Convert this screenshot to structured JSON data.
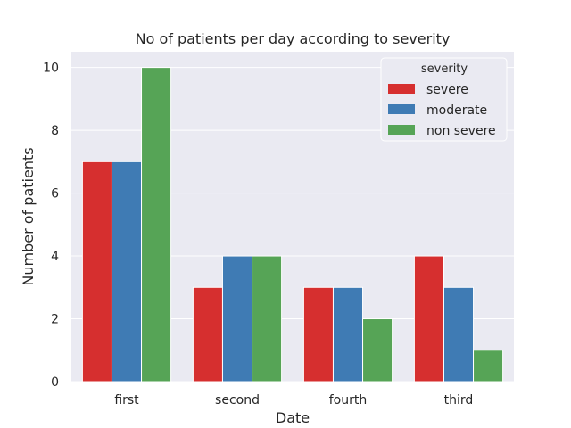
{
  "chart_data": {
    "type": "bar",
    "title": "No of patients per day according to severity",
    "xlabel": "Date",
    "ylabel": "Number of patients",
    "categories": [
      "first",
      "second",
      "fourth",
      "third"
    ],
    "series": [
      {
        "name": "severe",
        "color": "#d62f2f",
        "values": [
          7,
          3,
          3,
          4
        ]
      },
      {
        "name": "moderate",
        "color": "#3f7bb4",
        "values": [
          7,
          4,
          3,
          3
        ]
      },
      {
        "name": "non severe",
        "color": "#56a456",
        "values": [
          10,
          4,
          2,
          1
        ]
      }
    ],
    "ylim": [
      0,
      10.5
    ],
    "yticks": [
      0,
      2,
      4,
      6,
      8,
      10
    ],
    "grid": true,
    "background": "#eaeaf2",
    "legend": {
      "title": "severity",
      "placement": "top-right"
    }
  }
}
